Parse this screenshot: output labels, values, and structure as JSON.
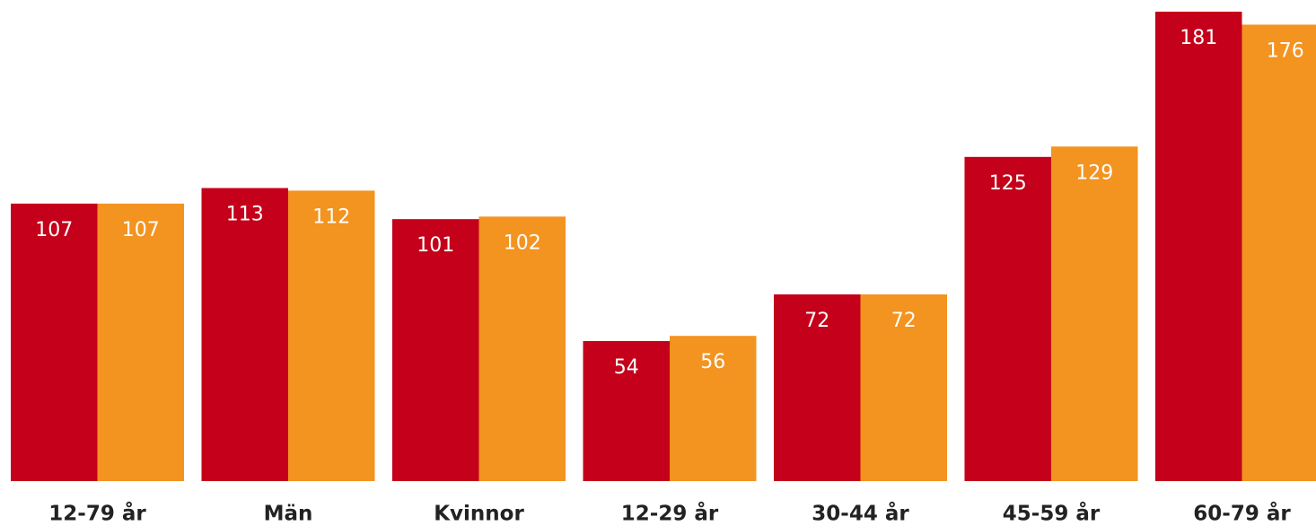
{
  "chart_data": {
    "type": "bar",
    "categories": [
      "12-79 år",
      "Män",
      "Kvinnor",
      "12-29 år",
      "30-44 år",
      "45-59 år",
      "60-79 år"
    ],
    "series": [
      {
        "color": "#c4001a",
        "values": [
          107,
          113,
          101,
          54,
          72,
          125,
          181
        ]
      },
      {
        "color": "#f39320",
        "values": [
          107,
          112,
          102,
          56,
          72,
          129,
          176
        ]
      }
    ]
  }
}
